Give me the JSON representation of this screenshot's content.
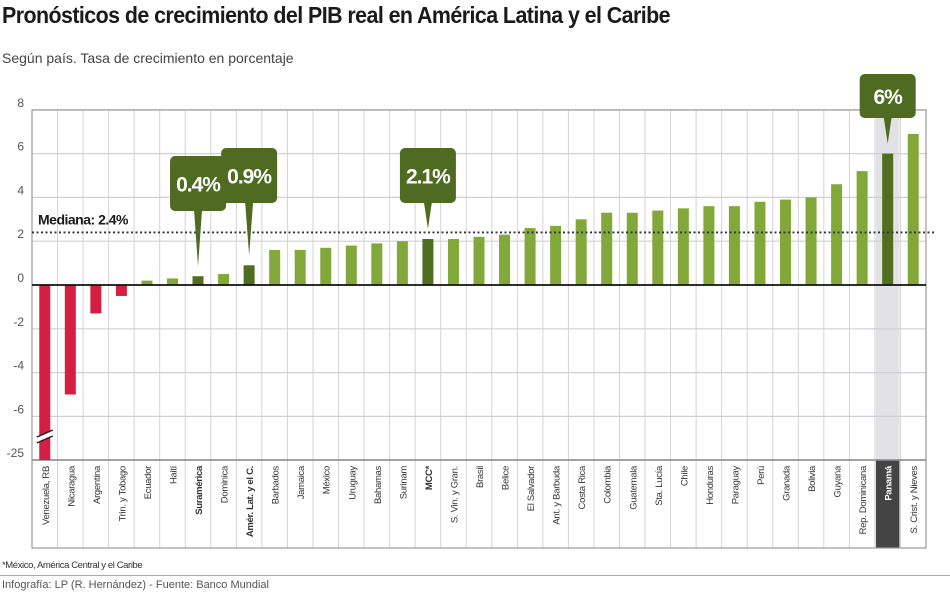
{
  "chart_data": {
    "type": "bar",
    "title": "Pronósticos de crecimiento del PIB real en América Latina y el Caribe",
    "subtitle": "Según país. Tasa de crecimiento en porcentaje",
    "categories": [
      "Venezuela, RB",
      "Nicaragua",
      "Argentina",
      "Trin. y Tobago",
      "Ecuador",
      "Haití",
      "Suramérica",
      "Dominica",
      "Amér. Lat. y el C.",
      "Barbados",
      "Jamaica",
      "México",
      "Uruguay",
      "Bahamas",
      "Surinam",
      "MCC*",
      "S. Vin. y Gran.",
      "Brasil",
      "Belice",
      "El Salvador",
      "Ant. y Barbuda",
      "Costa Rica",
      "Colombia",
      "Guatemala",
      "Sta. Lucía",
      "Chile",
      "Honduras",
      "Paraguay",
      "Perú",
      "Granada",
      "Bolivia",
      "Guyana",
      "Rep. Dominicana",
      "Panamá",
      "S. Crist. y Nieves"
    ],
    "values": [
      -25,
      -5.0,
      -1.3,
      -0.5,
      0.2,
      0.3,
      0.4,
      0.5,
      0.9,
      1.6,
      1.6,
      1.7,
      1.8,
      1.9,
      2.0,
      2.1,
      2.1,
      2.2,
      2.3,
      2.6,
      2.7,
      3.0,
      3.3,
      3.3,
      3.4,
      3.5,
      3.6,
      3.6,
      3.8,
      3.9,
      4.0,
      4.6,
      5.2,
      6.0,
      6.9
    ],
    "bold_categories": [
      "Suramérica",
      "Amér. Lat. y el C.",
      "MCC*",
      "Panamá"
    ],
    "y_ticks": [
      "8",
      "6",
      "4",
      "2",
      "0",
      "-2",
      "-4",
      "-6",
      "-25"
    ],
    "ylim": [
      -25,
      8
    ],
    "axis_break": "between -6 and -25",
    "grid": true,
    "median": {
      "value": 2.4,
      "label": "Mediana: 2.4%"
    },
    "callouts": [
      {
        "category": "Suramérica",
        "label": "0.4%"
      },
      {
        "category": "Amér. Lat. y el C.",
        "label": "0.9%"
      },
      {
        "category": "MCC*",
        "label": "2.1%"
      },
      {
        "category": "Panamá",
        "label": "6%"
      }
    ],
    "highlighted_category": "Panamá",
    "colors": {
      "negative": "#d41f43",
      "positive": "#82a83a",
      "highlight": "#4f6e20",
      "callout": "#4f6b22",
      "highlight_column": "#e2e2e6",
      "highlight_label_bg": "#444444"
    }
  },
  "footnote": "*México, América Central y el Caribe",
  "credit": "Infografía: LP (R. Hernández) - Fuente: Banco Mundial"
}
